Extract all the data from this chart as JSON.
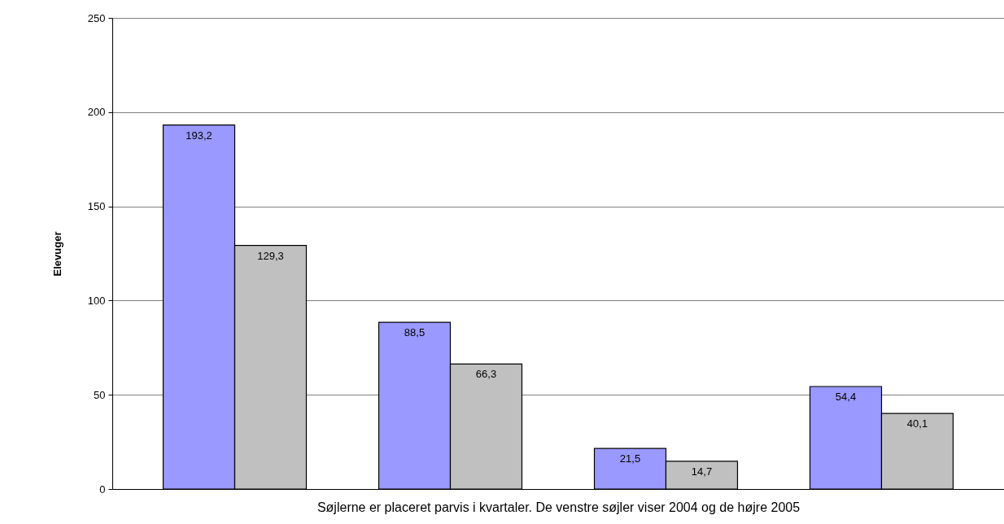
{
  "chart_data": {
    "type": "bar",
    "xlabel": "Søjlerne er placeret parvis i kvartaler. De venstre søjler viser 2004 og de højre 2005",
    "ylabel": "Elevuger",
    "categories": [
      null,
      null,
      null,
      null
    ],
    "series": [
      {
        "color": "#9999ff",
        "values": [
          193.2,
          88.5,
          21.5,
          54.4
        ],
        "value_labels": [
          "193,2",
          "88,5",
          "21,5",
          "54,4"
        ]
      },
      {
        "color": "#c0c0c0",
        "values": [
          129.3,
          66.3,
          14.7,
          40.1
        ],
        "value_labels": [
          "129,3",
          "66,3",
          "14,7",
          "40,1"
        ]
      }
    ],
    "ylim": [
      0,
      250
    ],
    "yticks": [
      0,
      50,
      100,
      150,
      200,
      250
    ],
    "grid": "y",
    "tick_labels": "y"
  }
}
